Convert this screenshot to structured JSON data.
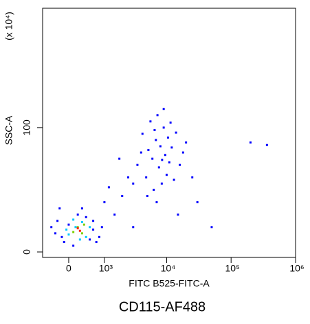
{
  "chart_data": {
    "type": "scatter",
    "title": "CD115-AF488",
    "x_label": "FITC B525-FITC-A",
    "y_label": "SSC-A",
    "y_multiplier": "(x 10⁴)",
    "xscale": "asinh",
    "xlim": [
      -650,
      1000000
    ],
    "xticks": [
      0,
      {
        "value": 1000,
        "label": "10³"
      },
      {
        "value": 10000,
        "label": "10⁴"
      },
      {
        "value": 100000,
        "label": "10⁵"
      },
      {
        "value": 1000000,
        "label": "10⁶"
      }
    ],
    "ylim": [
      -4.4,
      196
    ],
    "yticks": [
      0,
      100
    ],
    "series": [
      {
        "color": "#0000ff",
        "x": [
          3500,
          4200,
          4800,
          5200,
          5600,
          6000,
          6300,
          6800,
          7200,
          7600,
          8000,
          8400,
          9000,
          9500,
          10000,
          10500,
          11000,
          12000,
          13000,
          14000,
          16000,
          18000,
          5000,
          7000,
          9000,
          6500,
          8500,
          11500,
          4000,
          20000,
          25000,
          3000,
          1500,
          2000,
          2500,
          1800,
          1200,
          30000,
          50000,
          360000,
          200000,
          15000,
          3000,
          -400,
          1000,
          600,
          -200,
          800,
          -300,
          -100,
          100,
          200,
          400,
          600,
          700,
          -250,
          0,
          300,
          500,
          900,
          -150
        ],
        "values": [
          70,
          95,
          60,
          82,
          105,
          75,
          50,
          90,
          110,
          68,
          85,
          55,
          100,
          78,
          62,
          92,
          72,
          84,
          58,
          96,
          70,
          80,
          45,
          40,
          115,
          98,
          74,
          104,
          80,
          88,
          60,
          55,
          30,
          45,
          60,
          75,
          52,
          40,
          20,
          86,
          88,
          30,
          20,
          20,
          40,
          25,
          35,
          12,
          15,
          8,
          5,
          30,
          28,
          18,
          8,
          25,
          22,
          35,
          10,
          20,
          12
        ]
      },
      {
        "color": "#00c8ff",
        "x": [
          0,
          150,
          300,
          400,
          -50,
          250,
          500,
          100
        ],
        "values": [
          14,
          20,
          24,
          12,
          18,
          10,
          20,
          26
        ]
      },
      {
        "color": "#7cd000",
        "x": [
          100,
          200,
          300,
          350
        ],
        "values": [
          16,
          20,
          15,
          22
        ]
      },
      {
        "color": "#ff2000",
        "x": [
          250,
          200
        ],
        "values": [
          17,
          19
        ]
      }
    ]
  }
}
